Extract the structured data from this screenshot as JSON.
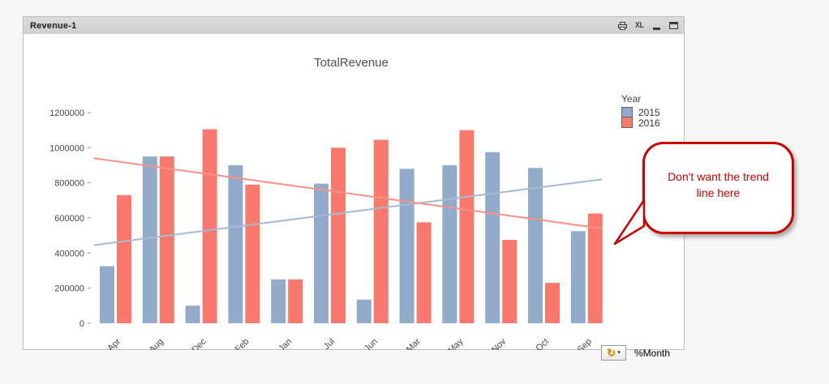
{
  "window": {
    "title": "Revenue-1",
    "icons": {
      "print": "print-icon",
      "excel": "XL",
      "minimize": "minimize-icon",
      "maximize": "maximize-icon"
    }
  },
  "chart": {
    "title": "TotalRevenue",
    "legend": {
      "title": "Year"
    },
    "dimension_label": "%Month"
  },
  "chart_data": {
    "type": "bar",
    "title": "TotalRevenue",
    "categories": [
      "Apr",
      "Aug",
      "Dec",
      "Feb",
      "Jan",
      "Jul",
      "Jun",
      "Mar",
      "May",
      "Nov",
      "Oct",
      "Sep"
    ],
    "series": [
      {
        "name": "2015",
        "color": "#92abcb",
        "values": [
          325000,
          950000,
          100000,
          900000,
          250000,
          795000,
          135000,
          880000,
          900000,
          975000,
          885000,
          525000
        ]
      },
      {
        "name": "2016",
        "color": "#f97a6d",
        "values": [
          730000,
          950000,
          1105000,
          790000,
          250000,
          1000000,
          1045000,
          575000,
          1100000,
          475000,
          230000,
          625000
        ]
      }
    ],
    "trend_lines": [
      {
        "series": "2015",
        "color": "#a6bad6",
        "start": 445000,
        "end": 820000
      },
      {
        "series": "2016",
        "color": "#fa9087",
        "start": 940000,
        "end": 540000
      }
    ],
    "ylim": [
      0,
      1200000
    ],
    "yticks": [
      0,
      200000,
      400000,
      600000,
      800000,
      1000000,
      1200000
    ],
    "grid": false,
    "legend_position": "right",
    "xlabel": "",
    "ylabel": ""
  },
  "callout": {
    "text": "Don't want the trend line here",
    "color": "#cc0000"
  },
  "colors": {
    "accent_2015": "#92abcb",
    "accent_2016": "#f97a6d",
    "callout_red": "#cc0000",
    "caption_bg": "#d4d4d4"
  }
}
